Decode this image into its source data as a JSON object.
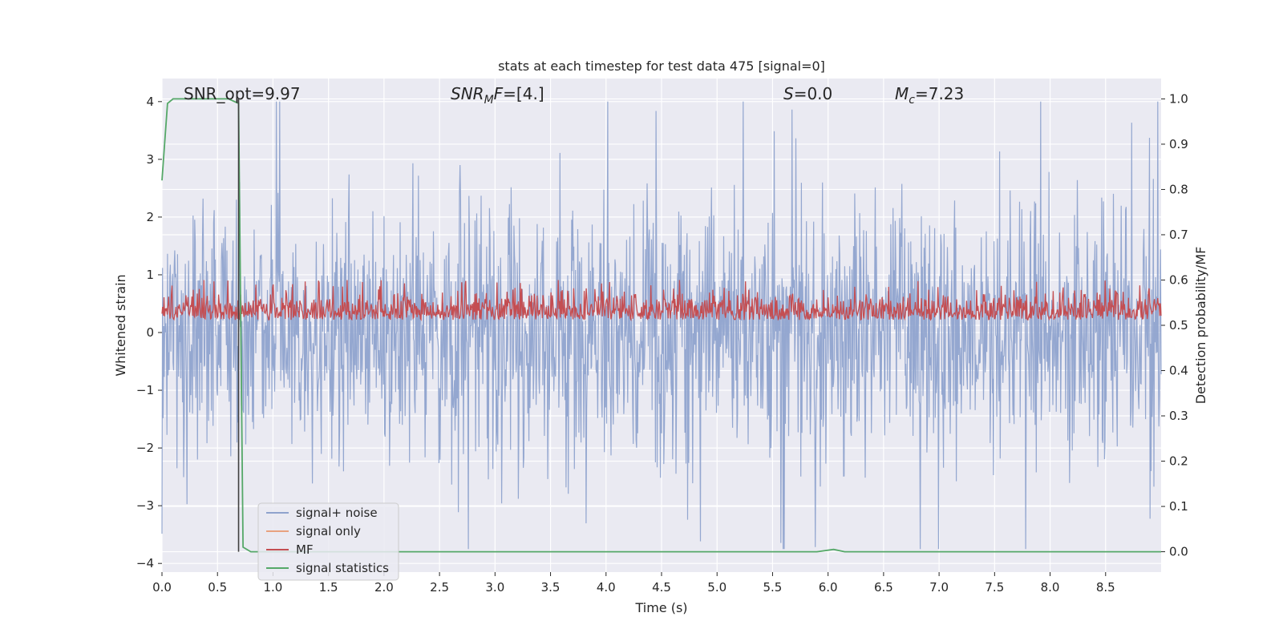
{
  "chart_data": {
    "type": "line",
    "title": "stats at each timestep for test data 475 [signal=0]",
    "xlabel": "Time (s)",
    "ylabel": "Whitened strain",
    "ylabel_right": "Detection probability/MF",
    "xlim": [
      0,
      9
    ],
    "ylim": [
      -4.15,
      4.4
    ],
    "ylim_right": [
      -0.045,
      1.045
    ],
    "x_ticks": [
      "0.0",
      "0.5",
      "1.0",
      "1.5",
      "2.0",
      "2.5",
      "3.0",
      "3.5",
      "4.0",
      "4.5",
      "5.0",
      "5.5",
      "6.0",
      "6.5",
      "7.0",
      "7.5",
      "8.0",
      "8.5"
    ],
    "y_ticks": [
      "4",
      "3",
      "2",
      "1",
      "0",
      "−1",
      "−2",
      "−3",
      "−4"
    ],
    "y_ticks_right": [
      "1.0",
      "0.9",
      "0.8",
      "0.7",
      "0.6",
      "0.5",
      "0.4",
      "0.3",
      "0.2",
      "0.1",
      "0.0"
    ],
    "grid": true,
    "legend_position": "lower-left",
    "annotations": [
      {
        "type": "text",
        "text": "SNR_opt=9.97"
      },
      {
        "type": "math",
        "base": "SNR",
        "sub": "M",
        "rest": "F=[4.]",
        "italic": true
      },
      {
        "type": "math",
        "base": "S",
        "sub": "",
        "rest": "=0.0",
        "italic": true
      },
      {
        "type": "math",
        "base": "M",
        "sub": "c",
        "rest": "=7.23",
        "italic": true
      }
    ],
    "marker_line_x": 0.69,
    "series": [
      {
        "name": "signal+ noise",
        "color": "#8fa3cd",
        "axis": "left",
        "kind": "noise",
        "sample_rate_hz": 200,
        "envelope": 1.9,
        "peak": 4.0
      },
      {
        "name": "signal only",
        "color": "#e8a27f",
        "axis": "left",
        "kind": "flat",
        "values": []
      },
      {
        "name": "MF",
        "color": "#c44e52",
        "axis": "right",
        "kind": "mf",
        "baseline": 0.5,
        "mean": 0.55,
        "max": 0.6
      },
      {
        "name": "signal statistics",
        "color": "#55a868",
        "axis": "right",
        "kind": "step",
        "x": [
          0.0,
          0.05,
          0.1,
          0.6,
          0.69,
          0.73,
          0.8,
          0.9,
          5.9,
          6.05,
          6.15,
          9.0
        ],
        "values": [
          0.82,
          0.99,
          1.0,
          1.0,
          0.99,
          0.01,
          -0.0,
          0.0,
          0.0,
          0.005,
          0.0,
          0.0
        ]
      }
    ],
    "colors": {
      "background": "#eaeaf2",
      "grid": "#ffffff",
      "marker_line": "#404040"
    }
  }
}
